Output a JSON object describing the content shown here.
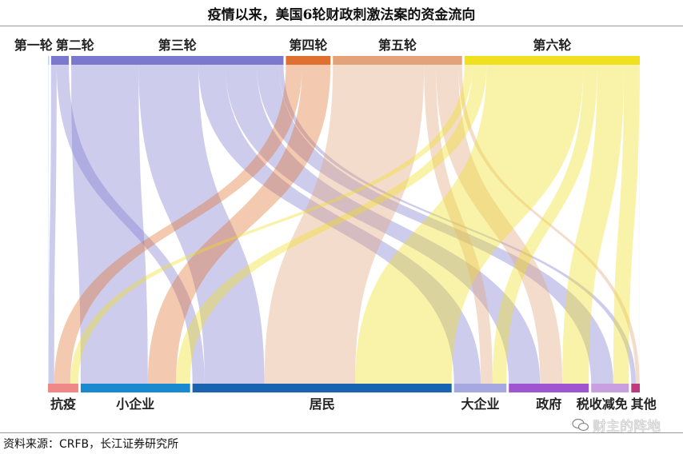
{
  "title": "疫情以来，美国6轮财政刺激法案的资金流向",
  "source": "资料来源：CRFB，长江证券研究所",
  "watermark": "财主的阵地",
  "chart_data": {
    "type": "sankey",
    "title": "疫情以来，美国6轮财政刺激法案的资金流向",
    "sources": [
      {
        "name": "第一轮",
        "value": 8,
        "color": "#bcd4ef"
      },
      {
        "name": "第二轮",
        "value": 192,
        "color": "#7b79cd"
      },
      {
        "name": "第三轮",
        "value": 2300,
        "color": "#7b79cd"
      },
      {
        "name": "第四轮",
        "value": 483,
        "color": "#e07030"
      },
      {
        "name": "第五轮",
        "value": 1400,
        "color": "#e3a27a"
      },
      {
        "name": "第六轮",
        "value": 1900,
        "color": "#f0e020"
      }
    ],
    "targets": [
      {
        "name": "抗疫",
        "value": 330,
        "color": "#f08888"
      },
      {
        "name": "小企业",
        "value": 1190,
        "color": "#1a8ad0"
      },
      {
        "name": "居民",
        "value": 2820,
        "color": "#1a63b0"
      },
      {
        "name": "大企业",
        "value": 570,
        "color": "#a8a8e0"
      },
      {
        "name": "政府",
        "value": 870,
        "color": "#a055d0"
      },
      {
        "name": "税收减免",
        "value": 410,
        "color": "#c8a0e0"
      },
      {
        "name": "其他",
        "value": 93,
        "color": "#c03880"
      }
    ],
    "flows": [
      {
        "from": "第一轮",
        "to": "抗疫",
        "value": 8
      },
      {
        "from": "第二轮",
        "to": "抗疫",
        "value": 60
      },
      {
        "from": "第二轮",
        "to": "居民",
        "value": 132
      },
      {
        "from": "第三轮",
        "to": "小企业",
        "value": 730
      },
      {
        "from": "第三轮",
        "to": "居民",
        "value": 650
      },
      {
        "from": "第三轮",
        "to": "大企业",
        "value": 290
      },
      {
        "from": "第三轮",
        "to": "政府",
        "value": 340
      },
      {
        "from": "第三轮",
        "to": "税收减免",
        "value": 240
      },
      {
        "from": "第三轮",
        "to": "其他",
        "value": 50
      },
      {
        "from": "第四轮",
        "to": "抗疫",
        "value": 175
      },
      {
        "from": "第四轮",
        "to": "小企业",
        "value": 308
      },
      {
        "from": "第五轮",
        "to": "居民",
        "value": 988
      },
      {
        "from": "第五轮",
        "to": "大企业",
        "value": 130
      },
      {
        "from": "第五轮",
        "to": "政府",
        "value": 242
      },
      {
        "from": "第五轮",
        "to": "其他",
        "value": 40
      },
      {
        "from": "第六轮",
        "to": "抗疫",
        "value": 87
      },
      {
        "from": "第六轮",
        "to": "小企业",
        "value": 152
      },
      {
        "from": "第六轮",
        "to": "居民",
        "value": 1050
      },
      {
        "from": "第六轮",
        "to": "大企业",
        "value": 150
      },
      {
        "from": "第六轮",
        "to": "政府",
        "value": 288
      },
      {
        "from": "第六轮",
        "to": "税收减免",
        "value": 170
      },
      {
        "from": "第六轮",
        "to": "其他",
        "value": 3
      }
    ],
    "legend": "none",
    "grid": false
  }
}
